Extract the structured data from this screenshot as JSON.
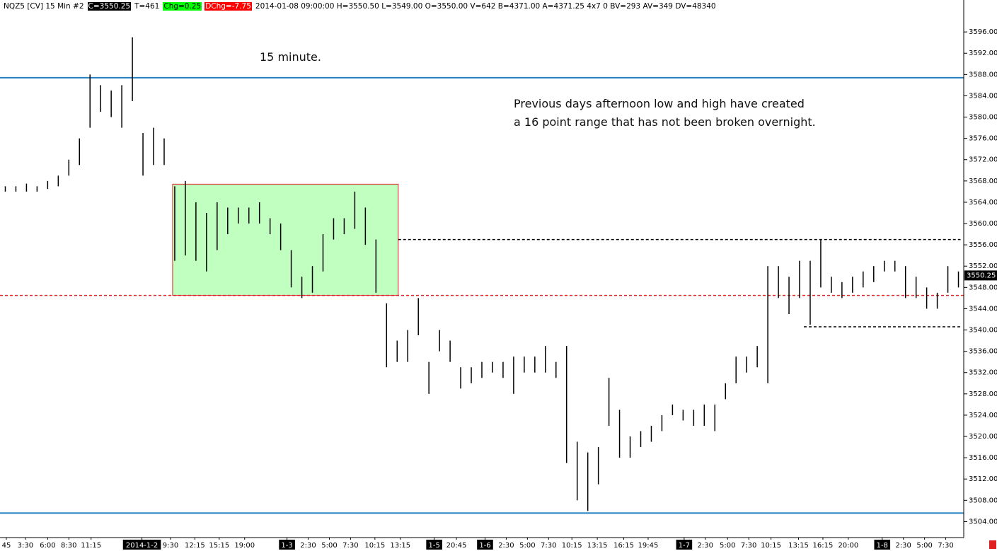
{
  "header": {
    "symbol": "NQZ5 [CV]  15 Min  #2",
    "close": "C=3550.25",
    "ticks": "T=461",
    "change": "Chg=0.25",
    "day_change": "DChg=-7.75",
    "details": "2014-01-08 09:00:00 H=3550.50 L=3549.00 O=3550.00 V=642 B=4371.00 A=4371.25 4x7 0 BV=293 AV=349 DV=48340"
  },
  "chart_data": {
    "type": "range_bar",
    "color": "#000000",
    "annotations": [
      "15 minute.",
      "Previous days afternoon low and high have created",
      "a 16 point range that has not been broken overnight."
    ],
    "high": [
      3567,
      3567,
      3567.5,
      3567,
      3568,
      3569,
      3572,
      3576,
      3588,
      3586,
      3585,
      3586,
      3595,
      3577,
      3578,
      3576,
      3567,
      3568,
      3564,
      3562,
      3564,
      3563,
      3563,
      3563,
      3564,
      3561,
      3560,
      3555,
      3550,
      3552,
      3558,
      3561,
      3561,
      3566,
      3563,
      3557,
      3545,
      3538,
      3540,
      3546,
      3534,
      3540,
      3538,
      3533,
      3533,
      3534,
      3534,
      3534,
      3535,
      3535,
      3535,
      3537,
      3534,
      3537,
      3519,
      3517,
      3518,
      3531,
      3525,
      3520,
      3521,
      3522,
      3524,
      3526,
      3525,
      3525,
      3526,
      3526,
      3530,
      3535,
      3535,
      3537,
      3552,
      3552,
      3550,
      3553,
      3553,
      3557,
      3550,
      3549,
      3550,
      3551,
      3552,
      3553,
      3553,
      3552,
      3550,
      3548,
      3547,
      3552,
      3551
    ],
    "low": [
      3566,
      3566,
      3566,
      3566,
      3566.5,
      3567,
      3569,
      3571,
      3578,
      3581,
      3580,
      3578,
      3583,
      3569,
      3571,
      3571,
      3553,
      3554,
      3553,
      3551,
      3555,
      3558,
      3560,
      3560,
      3560,
      3558,
      3555,
      3548,
      3546,
      3547,
      3551,
      3557,
      3558,
      3559,
      3556,
      3547,
      3533,
      3534,
      3534,
      3539,
      3528,
      3536,
      3534,
      3529,
      3530,
      3531,
      3532,
      3531,
      3528,
      3532,
      3532,
      3532,
      3531,
      3515,
      3508,
      3506,
      3511,
      3522,
      3516,
      3516,
      3518,
      3519,
      3521,
      3524,
      3523,
      3522,
      3522,
      3521,
      3527,
      3530,
      3532,
      3533,
      3530,
      3546,
      3543,
      3546,
      3541,
      3548,
      3547,
      3546,
      3547,
      3548,
      3549,
      3551,
      3551,
      3546,
      3546,
      3544,
      3544,
      3547,
      3548
    ],
    "xlim": [
      -0.5,
      90.5
    ],
    "ylim": [
      3501,
      3602
    ],
    "xticks": [
      {
        "value": 0.1,
        "label": "45"
      },
      {
        "value": 1.9,
        "label": "3:30"
      },
      {
        "value": 4.0,
        "label": "6:00"
      },
      {
        "value": 6.0,
        "label": "8:30"
      },
      {
        "value": 8.1,
        "label": "11:15"
      },
      {
        "value": 12.9,
        "label": "2014-1-2"
      },
      {
        "value": 15.6,
        "label": "9:30"
      },
      {
        "value": 17.9,
        "label": "12:15"
      },
      {
        "value": 20.2,
        "label": "15:15"
      },
      {
        "value": 22.6,
        "label": "19:00"
      },
      {
        "value": 26.6,
        "label": "1-3"
      },
      {
        "value": 28.6,
        "label": "2:30"
      },
      {
        "value": 30.6,
        "label": "5:00"
      },
      {
        "value": 32.6,
        "label": "7:30"
      },
      {
        "value": 34.9,
        "label": "10:15"
      },
      {
        "value": 37.3,
        "label": "13:15"
      },
      {
        "value": 40.5,
        "label": "1-5"
      },
      {
        "value": 42.6,
        "label": "20:45"
      },
      {
        "value": 45.3,
        "label": "1-6"
      },
      {
        "value": 47.3,
        "label": "2:30"
      },
      {
        "value": 49.3,
        "label": "5:00"
      },
      {
        "value": 51.3,
        "label": "7:30"
      },
      {
        "value": 53.5,
        "label": "10:15"
      },
      {
        "value": 55.9,
        "label": "13:15"
      },
      {
        "value": 58.4,
        "label": "16:15"
      },
      {
        "value": 60.7,
        "label": "19:45"
      },
      {
        "value": 64.1,
        "label": "1-7"
      },
      {
        "value": 66.1,
        "label": "2:30"
      },
      {
        "value": 68.2,
        "label": "5:00"
      },
      {
        "value": 70.2,
        "label": "7:30"
      },
      {
        "value": 72.3,
        "label": "10:15"
      },
      {
        "value": 74.9,
        "label": "13:15"
      },
      {
        "value": 77.2,
        "label": "16:15"
      },
      {
        "value": 79.6,
        "label": "20:00"
      },
      {
        "value": 82.8,
        "label": "1-8"
      },
      {
        "value": 84.8,
        "label": "2:30"
      },
      {
        "value": 86.8,
        "label": "5:00"
      },
      {
        "value": 88.8,
        "label": "7:30"
      }
    ],
    "yticks": [
      {
        "value": 3504,
        "label": "3504.00"
      },
      {
        "value": 3508,
        "label": "3508.00"
      },
      {
        "value": 3512,
        "label": "3512.00"
      },
      {
        "value": 3516,
        "label": "3516.00"
      },
      {
        "value": 3520,
        "label": "3520.00"
      },
      {
        "value": 3524,
        "label": "3524.00"
      },
      {
        "value": 3528,
        "label": "3528.00"
      },
      {
        "value": 3532,
        "label": "3532.00"
      },
      {
        "value": 3536,
        "label": "3536.00"
      },
      {
        "value": 3540,
        "label": "3540.00"
      },
      {
        "value": 3544,
        "label": "3544.00"
      },
      {
        "value": 3548,
        "label": "3548.00"
      },
      {
        "value": 3552,
        "label": "3552.00"
      },
      {
        "value": 3556,
        "label": "3556.00"
      },
      {
        "value": 3560,
        "label": "3560.00"
      },
      {
        "value": 3564,
        "label": "3564.00"
      },
      {
        "value": 3568,
        "label": "3568.00"
      },
      {
        "value": 3572,
        "label": "3572.00"
      },
      {
        "value": 3576,
        "label": "3576.00"
      },
      {
        "value": 3580,
        "label": "3580.00"
      },
      {
        "value": 3584,
        "label": "3584.00"
      },
      {
        "value": 3588,
        "label": "3588.00"
      },
      {
        "value": 3592,
        "label": "3592.00"
      },
      {
        "value": 3596,
        "label": "3596.00"
      }
    ],
    "zone": {
      "x": [
        15.8,
        37.1
      ],
      "y": [
        3546.5,
        3567.4
      ],
      "color": "#c0ffc0",
      "border": "#e02020"
    },
    "levels": [
      {
        "y": 3587.4,
        "color": "#1f7fbf",
        "style": "solid"
      },
      {
        "y": 3505.6,
        "color": "#1f7fbf",
        "style": "solid"
      },
      {
        "y": 3546.5,
        "color": "#e02020",
        "style": "dashed"
      },
      {
        "y": 3557.0,
        "x": [
          37.1,
          90.2
        ],
        "color": "#000000",
        "style": "dashed"
      },
      {
        "y": 3540.6,
        "x": [
          75.4,
          90.2
        ],
        "color": "#000000",
        "style": "dashed"
      }
    ],
    "last": 3550.25
  }
}
